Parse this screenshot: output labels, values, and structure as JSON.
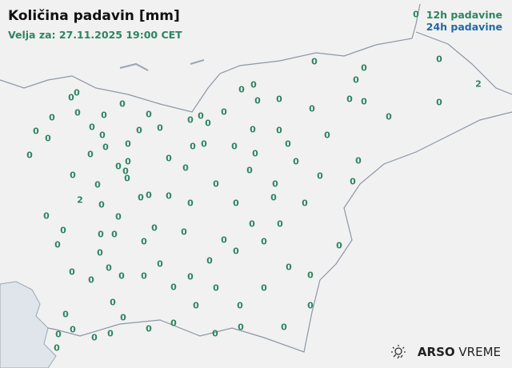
{
  "title": "Količina padavin [mm]",
  "valid": "Velja za: 27.11.2025 19:00 CET",
  "legend": {
    "h12": "12h padavine",
    "h24": "24h padavine",
    "color12": "#2e8461",
    "color24": "#1f6aa5"
  },
  "brand": {
    "bold": "ARSO",
    "rest": "VREME",
    "icon": "sun-rain-icon"
  },
  "stations": [
    "0",
    "0",
    "2",
    "0",
    "0",
    "0",
    "0",
    "0",
    "0",
    "0",
    "0",
    "0",
    "0",
    "0",
    "0",
    "0",
    "0",
    "0",
    "0",
    "0",
    "0",
    "0",
    "0",
    "0",
    "0",
    "0",
    "0",
    "0",
    "0",
    "0",
    "0",
    "0",
    "0",
    "0",
    "0",
    "0",
    "0",
    "0",
    "0",
    "0",
    "0",
    "0",
    "0",
    "0",
    "0",
    "0",
    "0",
    "0",
    "0",
    "0",
    "0",
    "0",
    "0",
    "0",
    "0",
    "0",
    "0",
    "0",
    "0",
    "0",
    "0",
    "0",
    "0",
    "0",
    "0",
    "0",
    "0",
    "0",
    "0",
    "0",
    "0",
    "0",
    "0",
    "0",
    "0",
    "0",
    "0",
    "0",
    "0",
    "0",
    "0",
    "0",
    "0",
    "0",
    "0",
    "0",
    "0",
    "0",
    "0",
    "0",
    "0",
    "0",
    "0",
    "0",
    "0",
    "0",
    "0",
    "0",
    "0",
    "0",
    "0",
    "0",
    "0",
    "0",
    "2",
    "0",
    "0",
    "0",
    "0",
    "0",
    "0",
    "0",
    "0"
  ]
}
